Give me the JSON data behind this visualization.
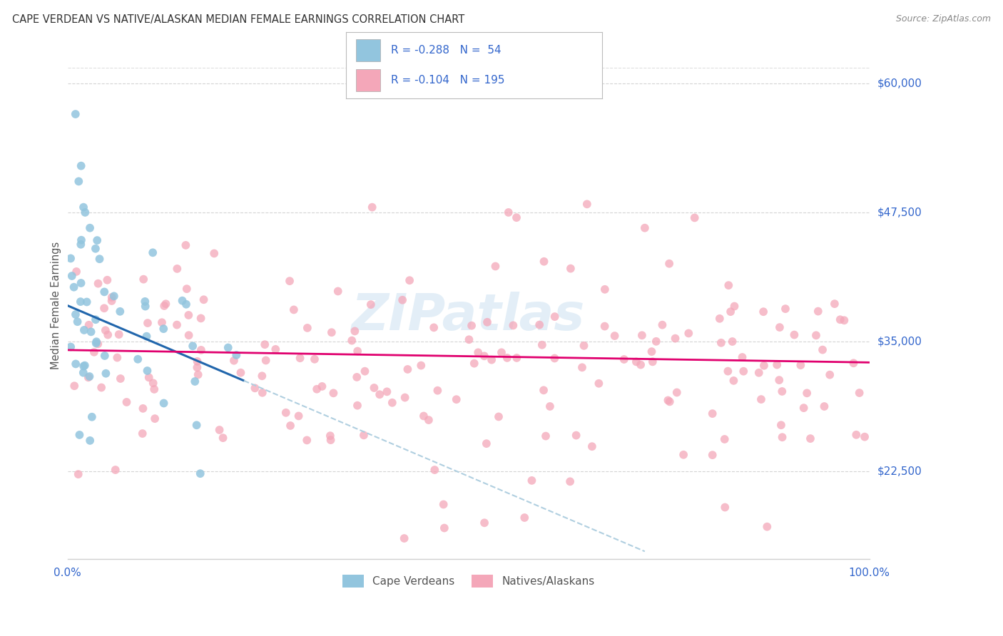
{
  "title": "CAPE VERDEAN VS NATIVE/ALASKAN MEDIAN FEMALE EARNINGS CORRELATION CHART",
  "source": "Source: ZipAtlas.com",
  "ylabel": "Median Female Earnings",
  "xlim": [
    0,
    100
  ],
  "ylim": [
    14000,
    63000
  ],
  "yticks": [
    22500,
    35000,
    47500,
    60000
  ],
  "ytick_labels": [
    "$22,500",
    "$35,000",
    "$47,500",
    "$60,000"
  ],
  "xtick_labels": [
    "0.0%",
    "100.0%"
  ],
  "legend_label1": "Cape Verdeans",
  "legend_label2": "Natives/Alaskans",
  "blue_scatter_color": "#92c5de",
  "pink_scatter_color": "#f4a7b9",
  "blue_line_color": "#2166ac",
  "pink_line_color": "#e0006e",
  "dashed_line_color": "#b0cfe0",
  "grid_color": "#d0d0d0",
  "title_color": "#333333",
  "axis_label_color": "#3366cc",
  "watermark_color": "#c8dff0",
  "R1": -0.288,
  "N1": 54,
  "R2": -0.104,
  "N2": 195,
  "blue_intercept": 38500,
  "blue_slope": -330,
  "blue_line_xmax": 22,
  "blue_dash_xmax": 72,
  "pink_intercept": 34200,
  "pink_slope": -12
}
